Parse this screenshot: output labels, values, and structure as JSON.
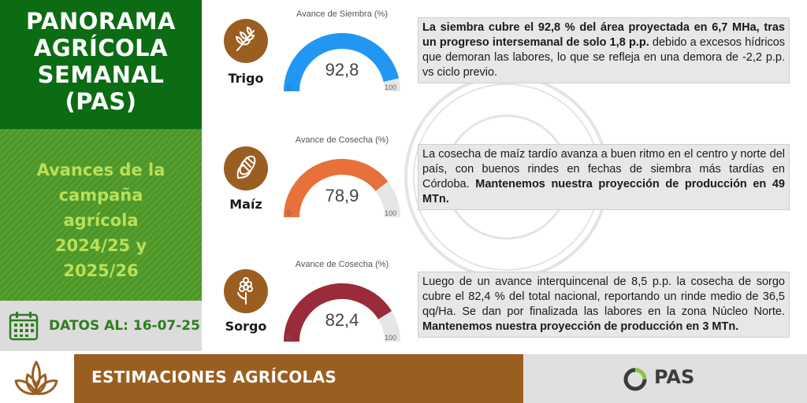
{
  "header": {
    "title_lines": [
      "PANORAMA",
      "AGRÍCOLA",
      "SEMANAL",
      "(PAS)"
    ]
  },
  "campaign": {
    "lines": [
      "Avances de la",
      "campaña",
      "agrícola",
      "2024/25 y",
      "2025/26"
    ]
  },
  "date": {
    "label": "DATOS AL: 16-07-25"
  },
  "footer": {
    "band_text": "ESTIMACIONES AGRÍCOLAS",
    "logo_text": "PAS"
  },
  "colors": {
    "dark_green": "#0b6c14",
    "mid_green": "#4f9a27",
    "lime_text": "#b8e05a",
    "brown": "#9b5e21",
    "gauge_trigo": "#2196f3",
    "gauge_maiz": "#e8703a",
    "gauge_sorgo": "#9b2b3a",
    "gauge_track": "#e6e6e6"
  },
  "crops": [
    {
      "name": "Trigo",
      "icon": "wheat-icon",
      "gauge": {
        "title": "Avance de Siembra (%)",
        "value": 92.8,
        "value_label": "92,8",
        "min_label": "0",
        "max_label": "100"
      },
      "text": [
        {
          "t": "La siembra cubre el 92,8 % del área proyectada en 6,7 MHa, tras un progreso intersemanal de solo 1,8 p.p.",
          "b": true
        },
        {
          "t": " debido a excesos hídricos que demoran las labores, lo que se refleja en una demora de -2,2 p.p. vs ciclo previo.",
          "b": false
        }
      ]
    },
    {
      "name": "Maíz",
      "icon": "corn-icon",
      "gauge": {
        "title": "Avance de Cosecha (%)",
        "value": 78.9,
        "value_label": "78,9",
        "min_label": "0",
        "max_label": "100"
      },
      "text": [
        {
          "t": "La cosecha de maíz tardío avanza a buen ritmo en el centro y norte del país, con buenos rindes en fechas de siembra más tardías en Córdoba. ",
          "b": false
        },
        {
          "t": "Mantenemos nuestra proyección de producción en 49 MTn.",
          "b": true
        }
      ]
    },
    {
      "name": "Sorgo",
      "icon": "sorghum-icon",
      "gauge": {
        "title": "Avance de Cosecha (%)",
        "value": 82.4,
        "value_label": "82,4",
        "min_label": "0",
        "max_label": "100"
      },
      "text": [
        {
          "t": "Luego de un avance interquincenal de 8,5 p.p. la cosecha de sorgo cubre el 82,4 % del total nacional, reportando un rinde medio de 36,5 qq/Ha. Se dan por finalizada las labores en la zona Núcleo Norte. ",
          "b": false
        },
        {
          "t": "Mantenemos nuestra proyección de producción en 3 MTn.",
          "b": true
        }
      ]
    }
  ]
}
